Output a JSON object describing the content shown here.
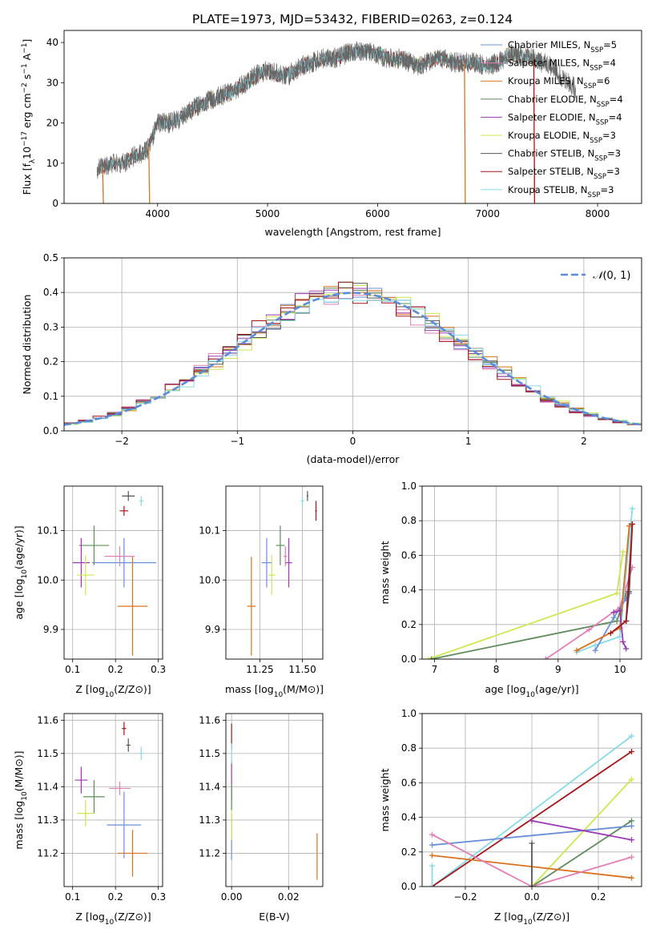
{
  "title": "PLATE=1973, MJD=53432, FIBERID=0263, z=0.124",
  "colors": {
    "chabrier_miles": "#6a8fd8",
    "salpeter_miles": "#e27fb4",
    "kroupa_miles": "#d9711f",
    "chabrier_elodie": "#5e8c5a",
    "salpeter_elodie": "#9b39b5",
    "kroupa_elodie": "#cde84e",
    "chabrier_stelib": "#555555",
    "salpeter_stelib": "#a4161a",
    "kroupa_stelib": "#86dbe6"
  },
  "chart_data": [
    {
      "type": "line",
      "title": "PLATE=1973, MJD=53432, FIBERID=0263, z=0.124",
      "xlabel": "wavelength [Angstrom, rest frame]",
      "ylabel": "Flux [fλ10⁻¹⁷ erg cm⁻² s⁻¹ A⁻¹]",
      "xlim": [
        3150,
        8400
      ],
      "ylim": [
        0,
        43
      ],
      "xticks": [
        "4000",
        "5000",
        "6000",
        "7000",
        "8000"
      ],
      "yticks": [
        "0",
        "10",
        "20",
        "30",
        "40"
      ],
      "grid": false,
      "legend_position": "top-right",
      "series": [
        {
          "name": "Chabrier MILES, N_SSP=5",
          "name_main": "Chabrier MILES, N",
          "name_sub": "SSP",
          "name_tail": "=5",
          "color_key": "chabrier_miles"
        },
        {
          "name": "Salpeter MILES, N_SSP=4",
          "name_main": "Salpeter MILES, N",
          "name_sub": "SSP",
          "name_tail": "=4",
          "color_key": "salpeter_miles"
        },
        {
          "name": "Kroupa MILES, N_SSP=6",
          "name_main": "Kroupa MILES, N",
          "name_sub": "SSP",
          "name_tail": "=6",
          "color_key": "kroupa_miles"
        },
        {
          "name": "Chabrier ELODIE, N_SSP=4",
          "name_main": "Chabrier ELODIE, N",
          "name_sub": "SSP",
          "name_tail": "=4",
          "color_key": "chabrier_elodie"
        },
        {
          "name": "Salpeter ELODIE, N_SSP=4",
          "name_main": "Salpeter ELODIE, N",
          "name_sub": "SSP",
          "name_tail": "=4",
          "color_key": "salpeter_elodie"
        },
        {
          "name": "Kroupa ELODIE, N_SSP=3",
          "name_main": "Kroupa ELODIE, N",
          "name_sub": "SSP",
          "name_tail": "=3",
          "color_key": "kroupa_elodie"
        },
        {
          "name": "Chabrier STELIB, N_SSP=3",
          "name_main": "Chabrier STELIB, N",
          "name_sub": "SSP",
          "name_tail": "=3",
          "color_key": "chabrier_stelib"
        },
        {
          "name": "Salpeter STELIB, N_SSP=3",
          "name_main": "Salpeter STELIB, N",
          "name_sub": "SSP",
          "name_tail": "=3",
          "color_key": "salpeter_stelib"
        },
        {
          "name": "Kroupa STELIB, N_SSP=3",
          "name_main": "Kroupa STELIB, N",
          "name_sub": "SSP",
          "name_tail": "=3",
          "color_key": "kroupa_stelib"
        }
      ],
      "continuum": {
        "x": [
          3450,
          3600,
          3700,
          3800,
          3900,
          3950,
          4000,
          4100,
          4200,
          4300,
          4400,
          4500,
          4600,
          4700,
          4800,
          4900,
          5000,
          5100,
          5200,
          5300,
          5400,
          5500,
          5600,
          5700,
          5800,
          5900,
          6000,
          6100,
          6200,
          6300,
          6400,
          6500,
          6600,
          6700,
          6800,
          6900,
          7000,
          7100,
          7200,
          7300,
          7400,
          7500
        ],
        "y": [
          8.5,
          10,
          10,
          12,
          13,
          16,
          20,
          20,
          21,
          23,
          25,
          26,
          27,
          28,
          30,
          32,
          33,
          32,
          32,
          34,
          35,
          36,
          36,
          37,
          38,
          38,
          37,
          36,
          36,
          35,
          34,
          36,
          36,
          35,
          35,
          35,
          34,
          35,
          37,
          37,
          36,
          35
        ]
      },
      "gray_tail": {
        "x": [
          7300,
          7400,
          7500,
          7600,
          7700,
          7800
        ],
        "y": [
          37,
          36,
          37,
          36,
          32,
          29
        ]
      },
      "drops": [
        {
          "color_key": "salpeter_miles",
          "x": 3500
        },
        {
          "color_key": "kroupa_miles",
          "x": 3500
        },
        {
          "color_key": "kroupa_elodie",
          "x": 3920
        },
        {
          "color_key": "kroupa_miles",
          "x": 3920
        },
        {
          "color_key": "kroupa_elodie",
          "x": 6790
        },
        {
          "color_key": "kroupa_miles",
          "x": 6790
        },
        {
          "color_key": "kroupa_miles",
          "x": 7420
        },
        {
          "color_key": "salpeter_stelib",
          "x": 7420
        }
      ]
    },
    {
      "type": "line",
      "xlabel": "(data-model)/error",
      "ylabel": "Normed distribution",
      "xlim": [
        -2.5,
        2.5
      ],
      "ylim": [
        0,
        0.5
      ],
      "xticks": [
        "−2",
        "−1",
        "0",
        "1",
        "2"
      ],
      "yticks": [
        "0.0",
        "0.1",
        "0.2",
        "0.3",
        "0.4",
        "0.5"
      ],
      "grid": true,
      "legend_position": "top-right",
      "legend": "N(0, 1)",
      "legend_symbol": "𝒩",
      "legend_args": "(0, 1)",
      "bin_width": 0.125,
      "reference_curve": "standard normal",
      "histograms": "steps-per-model (9 series, same colors as legend above)"
    },
    {
      "type": "scatter",
      "panel": "age vs Z",
      "xlabel_main": "Z [log",
      "xlabel_sub": "10",
      "xlabel_tail": "(Z/Z⊙)]",
      "ylabel_main": "age  [log",
      "ylabel_sub": "10",
      "ylabel_tail": "(age/yr)]",
      "xlim": [
        0.08,
        0.31
      ],
      "ylim": [
        9.84,
        10.19
      ],
      "xticks": [
        "0.1",
        "0.2",
        "0.3"
      ],
      "yticks": [
        "9.9",
        "10.0",
        "10.1"
      ],
      "grid": true,
      "points": [
        {
          "color_key": "chabrier_miles",
          "x": 0.22,
          "y": 10.035,
          "xerr": 0.15,
          "yerr": 0.05
        },
        {
          "color_key": "salpeter_miles",
          "x": 0.21,
          "y": 10.048,
          "xerr": 0.07,
          "yerr": 0.02
        },
        {
          "color_key": "kroupa_miles",
          "x": 0.24,
          "y": 9.947,
          "xerr": 0.07,
          "yerr": 0.1
        },
        {
          "color_key": "chabrier_elodie",
          "x": 0.15,
          "y": 10.07,
          "xerr": 0.07,
          "yerr": 0.04
        },
        {
          "color_key": "salpeter_elodie",
          "x": 0.12,
          "y": 10.035,
          "xerr": 0.04,
          "yerr": 0.05
        },
        {
          "color_key": "kroupa_elodie",
          "x": 0.13,
          "y": 10.01,
          "xerr": 0.04,
          "yerr": 0.04
        },
        {
          "color_key": "chabrier_stelib",
          "x": 0.23,
          "y": 10.17,
          "xerr": 0.03,
          "yerr": 0.01
        },
        {
          "color_key": "salpeter_stelib",
          "x": 0.22,
          "y": 10.14,
          "xerr": 0.02,
          "yerr": 0.01
        },
        {
          "color_key": "kroupa_stelib",
          "x": 0.26,
          "y": 10.16,
          "xerr": 0.01,
          "yerr": 0.01
        }
      ]
    },
    {
      "type": "scatter",
      "panel": "age vs mass",
      "xlabel_main": "mass [log",
      "xlabel_sub": "10",
      "xlabel_tail": "(M/M⊙)]",
      "xlim": [
        11.05,
        11.62
      ],
      "ylim": [
        9.84,
        10.19
      ],
      "xticks": [
        "11.25",
        "11.50"
      ],
      "yticks": [
        "9.9",
        "10.0",
        "10.1"
      ],
      "grid": true,
      "points": [
        {
          "color_key": "chabrier_miles",
          "x": 11.29,
          "y": 10.035,
          "xerr": 0.06,
          "yerr": 0.05
        },
        {
          "color_key": "salpeter_miles",
          "x": 11.4,
          "y": 10.048,
          "xerr": 0.02,
          "yerr": 0.02
        },
        {
          "color_key": "kroupa_miles",
          "x": 11.2,
          "y": 9.947,
          "xerr": 0.05,
          "yerr": 0.1
        },
        {
          "color_key": "chabrier_elodie",
          "x": 11.37,
          "y": 10.07,
          "xerr": 0.05,
          "yerr": 0.04
        },
        {
          "color_key": "salpeter_elodie",
          "x": 11.42,
          "y": 10.035,
          "xerr": 0.04,
          "yerr": 0.05
        },
        {
          "color_key": "kroupa_elodie",
          "x": 11.32,
          "y": 10.01,
          "xerr": 0.04,
          "yerr": 0.04
        },
        {
          "color_key": "chabrier_stelib",
          "x": 11.53,
          "y": 10.17,
          "xerr": 0.01,
          "yerr": 0.01
        },
        {
          "color_key": "salpeter_stelib",
          "x": 11.58,
          "y": 10.14,
          "xerr": 0.01,
          "yerr": 0.02
        },
        {
          "color_key": "kroupa_stelib",
          "x": 11.5,
          "y": 10.16,
          "xerr": 0.02,
          "yerr": 0.01
        }
      ]
    },
    {
      "type": "line",
      "panel": "mass weight vs age",
      "xlabel_main": "age  [log",
      "xlabel_sub": "10",
      "xlabel_tail": "(age/yr)]",
      "ylabel": "mass weight",
      "xlim": [
        6.8,
        10.35
      ],
      "ylim": [
        0,
        1
      ],
      "xticks": [
        "7",
        "8",
        "9",
        "10"
      ],
      "yticks": [
        "0.0",
        "0.2",
        "0.4",
        "0.6",
        "0.8",
        "1.0"
      ],
      "grid": true,
      "series": [
        {
          "color_key": "kroupa_elodie",
          "x": [
            6.9,
            9.95,
            10.05
          ],
          "y": [
            0,
            0.38,
            0.62
          ]
        },
        {
          "color_key": "chabrier_elodie",
          "x": [
            6.95,
            9.95,
            10.1
          ],
          "y": [
            0,
            0.22,
            0.38
          ]
        },
        {
          "color_key": "salpeter_miles",
          "x": [
            8.8,
            9.5,
            10.0,
            10.2
          ],
          "y": [
            0,
            0.17,
            0.3,
            0.53
          ]
        },
        {
          "color_key": "kroupa_stelib",
          "x": [
            9.3,
            9.6,
            10.0,
            10.2
          ],
          "y": [
            0.04,
            0.08,
            0.13,
            0.87
          ]
        },
        {
          "color_key": "chabrier_miles",
          "x": [
            9.6,
            9.9,
            10.1,
            10.15
          ],
          "y": [
            0.05,
            0.24,
            0.35,
            0.38
          ]
        },
        {
          "color_key": "kroupa_miles",
          "x": [
            9.3,
            10.0,
            10.15
          ],
          "y": [
            0.05,
            0.18,
            0.77
          ]
        },
        {
          "color_key": "salpeter_elodie",
          "x": [
            9.9,
            10.0,
            10.05,
            10.1
          ],
          "y": [
            0.27,
            0.28,
            0.1,
            0.06
          ]
        },
        {
          "color_key": "chabrier_stelib",
          "x": [
            10.1,
            10.15,
            10.2
          ],
          "y": [
            0.22,
            0.39,
            0.78
          ]
        },
        {
          "color_key": "salpeter_stelib",
          "x": [
            9.85,
            10.1,
            10.2
          ],
          "y": [
            0.15,
            0.22,
            0.78
          ]
        }
      ]
    },
    {
      "type": "scatter",
      "panel": "mass vs Z",
      "xlabel_main": "Z [log",
      "xlabel_sub": "10",
      "xlabel_tail": "(Z/Z⊙)]",
      "ylabel_main": "mass [log",
      "ylabel_sub": "10",
      "ylabel_tail": "(M/M⊙)]",
      "xlim": [
        0.08,
        0.31
      ],
      "ylim": [
        11.1,
        11.62
      ],
      "xticks": [
        "0.1",
        "0.2",
        "0.3"
      ],
      "yticks": [
        "11.2",
        "11.3",
        "11.4",
        "11.5",
        "11.6"
      ],
      "grid": true,
      "points": [
        {
          "color_key": "chabrier_miles",
          "x": 0.22,
          "y": 11.285,
          "xerr": 0.08,
          "yerr": 0.1
        },
        {
          "color_key": "salpeter_miles",
          "x": 0.21,
          "y": 11.395,
          "xerr": 0.05,
          "yerr": 0.02
        },
        {
          "color_key": "kroupa_miles",
          "x": 0.24,
          "y": 11.2,
          "xerr": 0.07,
          "yerr": 0.07
        },
        {
          "color_key": "chabrier_elodie",
          "x": 0.15,
          "y": 11.37,
          "xerr": 0.05,
          "yerr": 0.05
        },
        {
          "color_key": "salpeter_elodie",
          "x": 0.12,
          "y": 11.42,
          "xerr": 0.03,
          "yerr": 0.04
        },
        {
          "color_key": "kroupa_elodie",
          "x": 0.13,
          "y": 11.32,
          "xerr": 0.04,
          "yerr": 0.04
        },
        {
          "color_key": "chabrier_stelib",
          "x": 0.23,
          "y": 11.525,
          "xerr": 0.01,
          "yerr": 0.02
        },
        {
          "color_key": "salpeter_stelib",
          "x": 0.22,
          "y": 11.575,
          "xerr": 0.01,
          "yerr": 0.02
        },
        {
          "color_key": "kroupa_stelib",
          "x": 0.26,
          "y": 11.5,
          "xerr": 0.01,
          "yerr": 0.02
        }
      ]
    },
    {
      "type": "scatter",
      "panel": "mass vs E(B-V)",
      "xlabel": "E(B-V)",
      "xlim": [
        -0.002,
        0.032
      ],
      "ylim": [
        11.1,
        11.62
      ],
      "xticks": [
        "0.00",
        "0.02"
      ],
      "yticks": [
        "11.2",
        "11.3",
        "11.4",
        "11.5",
        "11.6"
      ],
      "grid": true,
      "points": [
        {
          "color_key": "chabrier_miles",
          "x": 0.0,
          "y": 11.25,
          "yerr": 0.07
        },
        {
          "color_key": "salpeter_elodie",
          "x": 0.0,
          "y": 11.42,
          "yerr": 0.06
        },
        {
          "color_key": "kroupa_elodie",
          "x": 0.0,
          "y": 11.3,
          "yerr": 0.06
        },
        {
          "color_key": "chabrier_elodie",
          "x": 0.0,
          "y": 11.37,
          "yerr": 0.04
        },
        {
          "color_key": "salpeter_stelib",
          "x": 0.0,
          "y": 11.55,
          "yerr": 0.04
        },
        {
          "color_key": "kroupa_stelib",
          "x": 0.0,
          "y": 11.5,
          "yerr": 0.03
        },
        {
          "color_key": "kroupa_miles",
          "x": 0.03,
          "y": 11.19,
          "yerr": 0.07
        }
      ]
    },
    {
      "type": "line",
      "panel": "mass weight vs Z",
      "xlabel_main": "Z [log",
      "xlabel_sub": "10",
      "xlabel_tail": "(Z/Z⊙)]",
      "ylabel": "mass weight",
      "xlim": [
        -0.33,
        0.33
      ],
      "ylim": [
        0,
        1
      ],
      "xticks": [
        "−0.2",
        "0.0",
        "0.2"
      ],
      "yticks": [
        "0.0",
        "0.2",
        "0.4",
        "0.6",
        "0.8",
        "1.0"
      ],
      "grid": true,
      "series": [
        {
          "color_key": "kroupa_stelib",
          "x": [
            -0.3,
            0.3
          ],
          "y": [
            0.0,
            0.87
          ]
        },
        {
          "color_key": "salpeter_stelib",
          "x": [
            -0.3,
            0.3
          ],
          "y": [
            0.0,
            0.78
          ]
        },
        {
          "color_key": "kroupa_elodie",
          "x": [
            0.0,
            0.3
          ],
          "y": [
            0.0,
            0.62
          ]
        },
        {
          "color_key": "chabrier_elodie",
          "x": [
            0.0,
            0.3
          ],
          "y": [
            0.0,
            0.38
          ]
        },
        {
          "color_key": "chabrier_miles",
          "x": [
            -0.3,
            0.3
          ],
          "y": [
            0.24,
            0.35
          ]
        },
        {
          "color_key": "salpeter_elodie",
          "x": [
            0.0,
            0.3
          ],
          "y": [
            0.38,
            0.27
          ]
        },
        {
          "color_key": "kroupa_miles",
          "x": [
            -0.3,
            0.3
          ],
          "y": [
            0.18,
            0.05
          ]
        },
        {
          "color_key": "salpeter_miles",
          "x": [
            -0.3,
            0.0,
            0.3
          ],
          "y": [
            0.3,
            0.0,
            0.17
          ]
        },
        {
          "color_key": "chabrier_stelib",
          "x": [
            0.0,
            0.0
          ],
          "y": [
            0.0,
            0.25
          ]
        },
        {
          "color_key": "kroupa_stelib",
          "x": [
            -0.3,
            -0.3
          ],
          "y": [
            0.0,
            0.12
          ]
        }
      ]
    }
  ]
}
